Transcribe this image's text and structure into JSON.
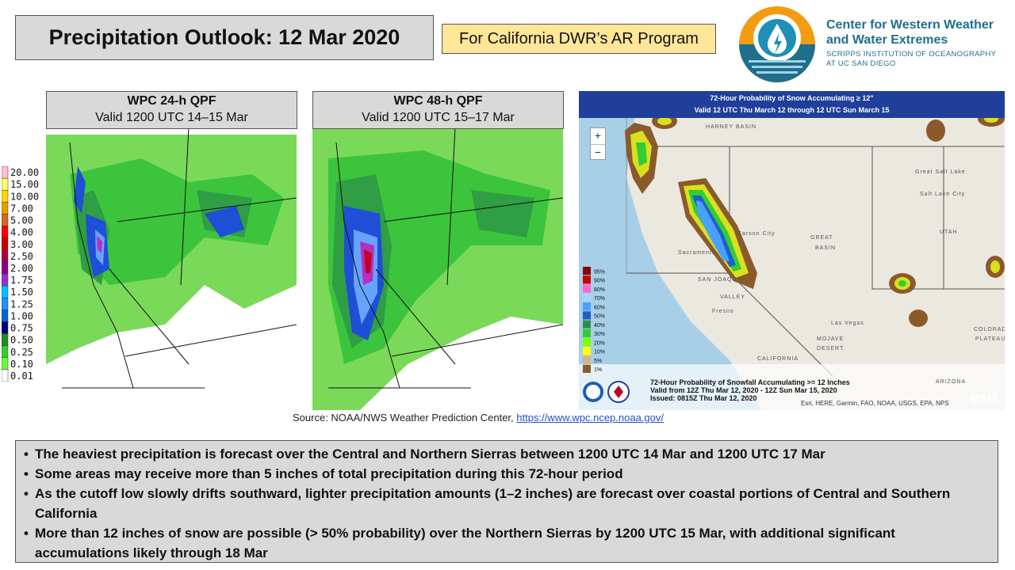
{
  "title": "Precipitation Outlook: 12 Mar 2020",
  "subtitle": "For California DWR’s AR Program",
  "logo": {
    "line1": "Center for Western Weather",
    "line2": "and Water Extremes",
    "line3": "SCRIPPS INSTITUTION OF OCEANOGRAPHY",
    "line4": "AT UC SAN DIEGO"
  },
  "panels": [
    {
      "title": "WPC 24-h QPF",
      "valid": "Valid 1200 UTC 14–15 Mar"
    },
    {
      "title": "WPC 48-h QPF",
      "valid": "Valid 1200 UTC 15–17 Mar"
    }
  ],
  "qpf_legend": {
    "labels": [
      "20.00",
      "15.00",
      "10.00",
      "7.00",
      "5.00",
      "4.00",
      "3.00",
      "2.50",
      "2.00",
      "1.75",
      "1.50",
      "1.25",
      "1.00",
      "0.75",
      "0.50",
      "0.25",
      "0.10",
      "0.01"
    ],
    "colors": [
      "#ffc0d0",
      "#ffff66",
      "#ffd700",
      "#e0a000",
      "#d2691e",
      "#ff0000",
      "#cc0000",
      "#aa0044",
      "#8b008b",
      "#9932cc",
      "#00bfff",
      "#1e90ff",
      "#0066cc",
      "#000080",
      "#228b22",
      "#32cd32",
      "#66ff33",
      "#ffffff"
    ]
  },
  "snow_map": {
    "title_line1": "72-Hour Probability of Snow Accumulating ≥ 12\"",
    "title_line2": "Valid 12 UTC Thu March 12 through 12 UTC Sun March 15",
    "zoom_in": "+",
    "zoom_out": "−",
    "legend_labels": [
      "95%",
      "90%",
      "80%",
      "70%",
      "60%",
      "50%",
      "40%",
      "30%",
      "20%",
      "10%",
      "5%",
      "1%"
    ],
    "legend_colors": [
      "#8b0000",
      "#cc0000",
      "#ff66cc",
      "#a0d8ff",
      "#4aa0ff",
      "#1e5fd0",
      "#2e8b57",
      "#32cd32",
      "#7fff00",
      "#ffff00",
      "#d2b48c",
      "#8b5a2b"
    ],
    "caption_line1": "72-Hour Probability of Snowfall Accumulating >= 12 Inches",
    "caption_line2": "Valid from 12Z Thu Mar 12, 2020 - 12Z Sun Mar 15, 2020",
    "caption_line3": "Issued: 0815Z Thu Mar 12, 2020",
    "attribution": "Esri, HERE, Garmin, FAO, NOAA, USGS, EPA, NPS",
    "esri": "esri",
    "places": [
      "HARNEY BASIN",
      "Carson City",
      "GREAT",
      "BASIN",
      "Sacramento",
      "SAN JOAQUIN",
      "VALLEY",
      "Fresno",
      "Las Vegas",
      "MOJAVE",
      "DESERT",
      "CALIFORNIA",
      "UTAH",
      "ARIZONA",
      "COLORADO",
      "PLATEAU",
      "Salt Lake City",
      "Great Salt Lake"
    ]
  },
  "source": {
    "prefix": "Source: NOAA/NWS Weather Prediction Center,",
    "link": "https://www.wpc.ncep.noaa.gov/"
  },
  "bullets": [
    "The heaviest precipitation is forecast over the Central and Northern Sierras between 1200 UTC 14 Mar and 1200 UTC 17 Mar",
    "Some areas may receive more than 5 inches of total precipitation during this 72-hour period",
    "As the cutoff low slowly drifts southward, lighter precipitation amounts (1–2 inches) are forecast over coastal portions of Central and Southern California",
    "More than 12 inches of snow are possible (> 50% probability) over the Northern Sierras by 1200 UTC 15 Mar, with additional significant accumulations likely through 18 Mar"
  ]
}
